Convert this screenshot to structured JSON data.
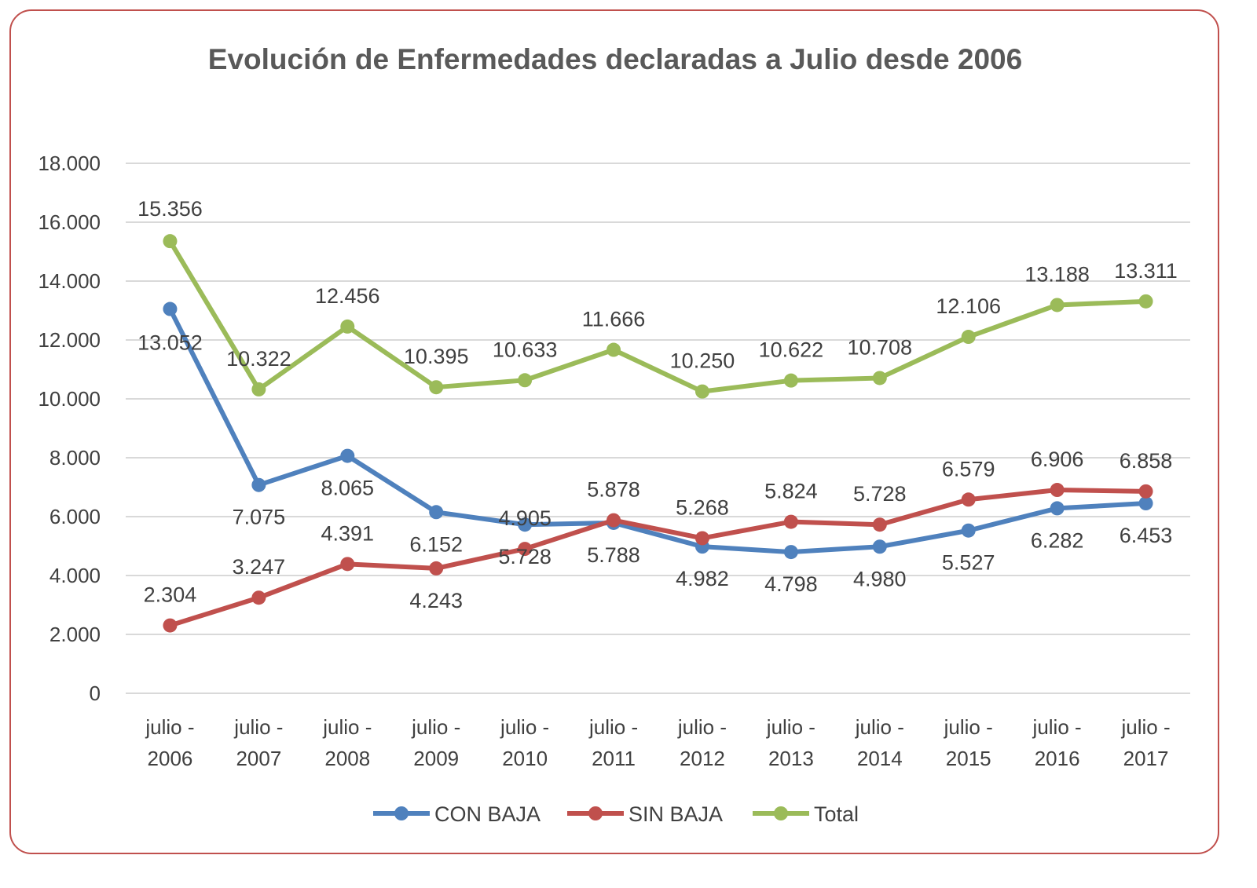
{
  "chart_data": {
    "type": "line",
    "title": "Evolución de Enfermedades declaradas a Julio desde 2006",
    "categories": [
      [
        "julio -",
        "2006"
      ],
      [
        "julio -",
        "2007"
      ],
      [
        "julio -",
        "2008"
      ],
      [
        "julio -",
        "2009"
      ],
      [
        "julio -",
        "2010"
      ],
      [
        "julio -",
        "2011"
      ],
      [
        "julio -",
        "2012"
      ],
      [
        "julio -",
        "2013"
      ],
      [
        "julio -",
        "2014"
      ],
      [
        "julio -",
        "2015"
      ],
      [
        "julio -",
        "2016"
      ],
      [
        "julio -",
        "2017"
      ]
    ],
    "ylim": [
      0,
      18000
    ],
    "yticks": [
      0,
      2000,
      4000,
      6000,
      8000,
      10000,
      12000,
      14000,
      16000,
      18000
    ],
    "ytick_labels": [
      "0",
      "2.000",
      "4.000",
      "6.000",
      "8.000",
      "10.000",
      "12.000",
      "14.000",
      "16.000",
      "18.000"
    ],
    "grid": true,
    "legend": "bottom",
    "series": [
      {
        "name": "CON BAJA",
        "color": "#4f81bd",
        "values": [
          13052,
          7075,
          8065,
          6152,
          5728,
          5788,
          4982,
          4798,
          4980,
          5527,
          6282,
          6453
        ],
        "labels": [
          "13.052",
          "7.075",
          "8.065",
          "6.152",
          "5.728",
          "5.788",
          "4.982",
          "4.798",
          "4.980",
          "5.527",
          "6.282",
          "6.453"
        ]
      },
      {
        "name": "SIN BAJA",
        "color": "#c0504d",
        "values": [
          2304,
          3247,
          4391,
          4243,
          4905,
          5878,
          5268,
          5824,
          5728,
          6579,
          6906,
          6858
        ],
        "labels": [
          "2.304",
          "3.247",
          "4.391",
          "4.243",
          "4.905",
          "5.878",
          "5.268",
          "5.824",
          "5.728",
          "6.579",
          "6.906",
          "6.858"
        ]
      },
      {
        "name": "Total",
        "color": "#9bbb59",
        "values": [
          15356,
          10322,
          12456,
          10395,
          10633,
          11666,
          10250,
          10622,
          10708,
          12106,
          13188,
          13311
        ],
        "labels": [
          "15.356",
          "10.322",
          "12.456",
          "10.395",
          "10.633",
          "11.666",
          "10.250",
          "10.622",
          "10.708",
          "12.106",
          "13.188",
          "13.311"
        ]
      }
    ]
  }
}
